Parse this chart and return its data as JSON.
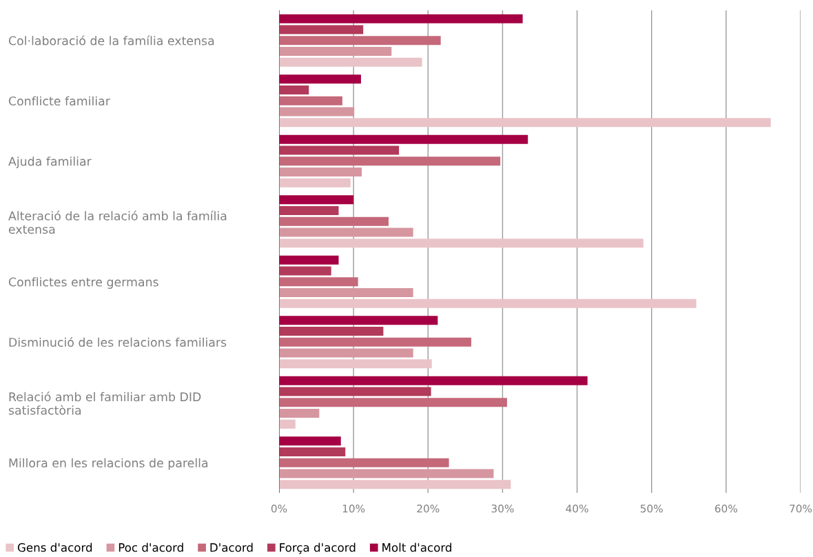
{
  "chart_data": {
    "type": "bar",
    "orientation": "horizontal",
    "categories": [
      "Col·laboració de la família extensa",
      "Conflicte familiar",
      "Ajuda familiar",
      "Alteració de la relació amb la família\nextensa",
      "Conflictes entre germans",
      "Disminució de les relacions familiars",
      "Relació amb el familiar amb DID\nsatisfactòria",
      "Millora en les relacions de parella"
    ],
    "series": [
      {
        "name": "Gens d'acord",
        "color": "#e9c3c8",
        "values": [
          19.2,
          66.0,
          9.6,
          48.9,
          56.0,
          20.5,
          2.2,
          31.1
        ]
      },
      {
        "name": "Poc d'acord",
        "color": "#d6969f",
        "values": [
          15.1,
          10.1,
          11.1,
          18.0,
          18.0,
          18.0,
          5.4,
          28.8
        ]
      },
      {
        "name": "D'acord",
        "color": "#c4687a",
        "values": [
          21.7,
          8.5,
          29.7,
          14.7,
          10.6,
          25.8,
          30.6,
          22.8
        ]
      },
      {
        "name": "Força d'acord",
        "color": "#b23a5a",
        "values": [
          11.3,
          4.0,
          16.1,
          8.0,
          7.0,
          14.0,
          20.4,
          8.9
        ]
      },
      {
        "name": "Molt d'acord",
        "color": "#a50044",
        "values": [
          32.7,
          11.0,
          33.4,
          10.0,
          8.0,
          21.3,
          41.4,
          8.3
        ]
      }
    ],
    "xlim": [
      0,
      70
    ],
    "xticks": [
      {
        "value": 0,
        "label": "0%"
      },
      {
        "value": 10,
        "label": "10%"
      },
      {
        "value": 20,
        "label": "20%"
      },
      {
        "value": 30,
        "label": "30%"
      },
      {
        "value": 40,
        "label": "40%"
      },
      {
        "value": 50,
        "label": "50%"
      },
      {
        "value": 60,
        "label": "60%"
      },
      {
        "value": 70,
        "label": "70%"
      }
    ],
    "grid": "x",
    "legend": "bottom left"
  }
}
